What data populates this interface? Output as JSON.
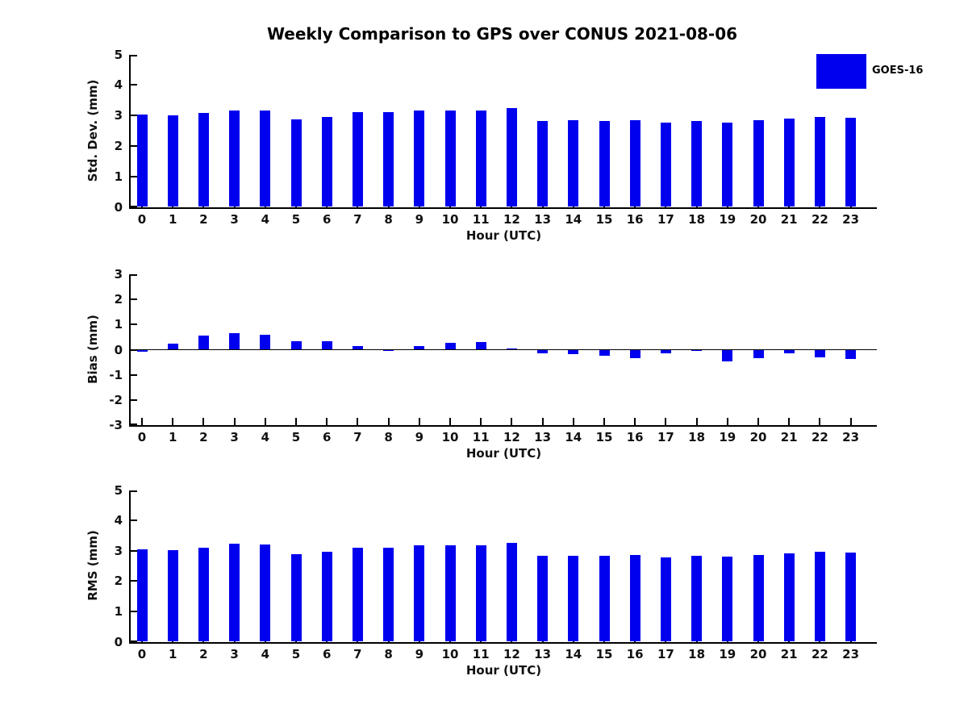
{
  "title": "Weekly Comparison to GPS over CONUS 2021-08-06",
  "legend": {
    "label": "GOES-16",
    "color": "#0000ee"
  },
  "colors": {
    "bar": "#0000ee",
    "axis": "#000000",
    "text": "#111111",
    "background": "#ffffff"
  },
  "chart_data": [
    {
      "type": "bar",
      "ylabel": "Std. Dev. (mm)",
      "xlabel": "Hour (UTC)",
      "series_name": "GOES-16",
      "categories": [
        "0",
        "1",
        "2",
        "3",
        "4",
        "5",
        "6",
        "7",
        "8",
        "9",
        "10",
        "11",
        "12",
        "13",
        "14",
        "15",
        "16",
        "17",
        "18",
        "19",
        "20",
        "21",
        "22",
        "23"
      ],
      "values": [
        3.03,
        3.01,
        3.08,
        3.17,
        3.17,
        2.88,
        2.96,
        3.12,
        3.1,
        3.17,
        3.17,
        3.17,
        3.24,
        2.82,
        2.85,
        2.82,
        2.85,
        2.77,
        2.82,
        2.77,
        2.85,
        2.91,
        2.96,
        2.93
      ],
      "ylim": [
        0,
        5
      ],
      "yticks": [
        0,
        1,
        2,
        3,
        4,
        5
      ],
      "grid": false,
      "legend_position": "outside-top-right"
    },
    {
      "type": "bar",
      "ylabel": "Bias (mm)",
      "xlabel": "Hour (UTC)",
      "series_name": "GOES-16",
      "categories": [
        "0",
        "1",
        "2",
        "3",
        "4",
        "5",
        "6",
        "7",
        "8",
        "9",
        "10",
        "11",
        "12",
        "13",
        "14",
        "15",
        "16",
        "17",
        "18",
        "19",
        "20",
        "21",
        "22",
        "23"
      ],
      "values": [
        -0.08,
        0.24,
        0.55,
        0.65,
        0.58,
        0.33,
        0.33,
        0.13,
        -0.06,
        0.16,
        0.27,
        0.32,
        0.04,
        -0.14,
        -0.18,
        -0.25,
        -0.35,
        -0.13,
        -0.06,
        -0.45,
        -0.34,
        -0.16,
        -0.32,
        -0.36
      ],
      "ylim": [
        -3,
        3
      ],
      "yticks": [
        -3,
        -2,
        -1,
        0,
        1,
        2,
        3
      ],
      "grid": false,
      "zero_line": true
    },
    {
      "type": "bar",
      "ylabel": "RMS (mm)",
      "xlabel": "Hour (UTC)",
      "series_name": "GOES-16",
      "categories": [
        "0",
        "1",
        "2",
        "3",
        "4",
        "5",
        "6",
        "7",
        "8",
        "9",
        "10",
        "11",
        "12",
        "13",
        "14",
        "15",
        "16",
        "17",
        "18",
        "19",
        "20",
        "21",
        "22",
        "23"
      ],
      "values": [
        3.04,
        3.01,
        3.1,
        3.22,
        3.2,
        2.88,
        2.96,
        3.09,
        3.1,
        3.17,
        3.17,
        3.17,
        3.25,
        2.83,
        2.83,
        2.82,
        2.85,
        2.78,
        2.83,
        2.81,
        2.86,
        2.92,
        2.96,
        2.95
      ],
      "ylim": [
        0,
        5
      ],
      "yticks": [
        0,
        1,
        2,
        3,
        4,
        5
      ],
      "grid": false
    }
  ]
}
